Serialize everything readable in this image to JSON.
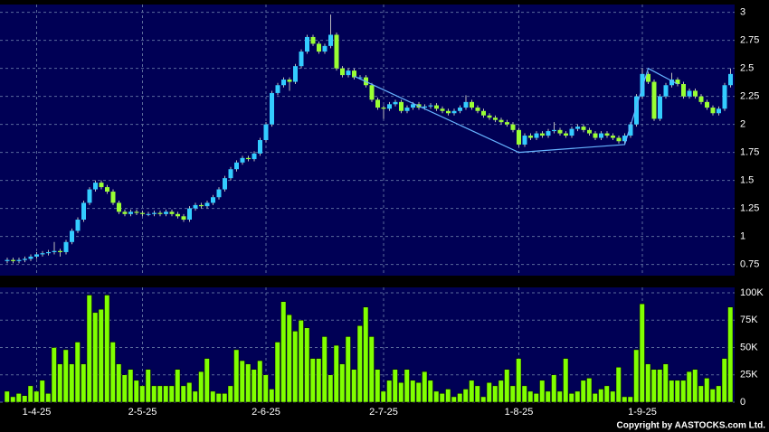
{
  "chart_data": {
    "type": "candlestick",
    "categories": [
      null,
      null,
      null,
      null,
      null,
      "1-4-25",
      null,
      null,
      null,
      null,
      null,
      null,
      null,
      null,
      null,
      null,
      null,
      null,
      null,
      null,
      null,
      null,
      null,
      "2-5-25",
      null,
      null,
      null,
      null,
      null,
      null,
      null,
      null,
      null,
      null,
      null,
      null,
      null,
      null,
      null,
      null,
      null,
      null,
      null,
      null,
      "2-6-25",
      null,
      null,
      null,
      null,
      null,
      null,
      null,
      null,
      null,
      null,
      null,
      null,
      null,
      null,
      null,
      null,
      null,
      null,
      null,
      "2-7-25",
      null,
      null,
      null,
      null,
      null,
      null,
      null,
      null,
      null,
      null,
      null,
      null,
      null,
      null,
      null,
      null,
      null,
      null,
      null,
      null,
      null,
      null,
      "1-8-25",
      null,
      null,
      null,
      null,
      null,
      null,
      null,
      null,
      null,
      null,
      null,
      null,
      null,
      null,
      null,
      null,
      null,
      null,
      null,
      null,
      "1-9-25",
      null,
      null,
      null,
      null,
      null,
      null,
      null,
      null,
      null,
      null,
      null,
      null,
      null,
      null,
      null
    ],
    "candles": [
      [
        0.78,
        0.81,
        0.76,
        0.79
      ],
      [
        0.79,
        0.81,
        0.76,
        0.78
      ],
      [
        0.78,
        0.81,
        0.76,
        0.79
      ],
      [
        0.79,
        0.82,
        0.77,
        0.8
      ],
      [
        0.8,
        0.84,
        0.78,
        0.82
      ],
      [
        0.82,
        0.86,
        0.8,
        0.84
      ],
      [
        0.84,
        0.87,
        0.82,
        0.85
      ],
      [
        0.85,
        0.88,
        0.83,
        0.86
      ],
      [
        0.86,
        0.95,
        0.84,
        0.87
      ],
      [
        0.87,
        0.89,
        0.82,
        0.86
      ],
      [
        0.86,
        0.97,
        0.84,
        0.95
      ],
      [
        0.95,
        1.07,
        0.93,
        1.05
      ],
      [
        1.05,
        1.17,
        1.03,
        1.15
      ],
      [
        1.15,
        1.32,
        1.13,
        1.3
      ],
      [
        1.3,
        1.44,
        1.28,
        1.42
      ],
      [
        1.42,
        1.5,
        1.4,
        1.48
      ],
      [
        1.48,
        1.5,
        1.42,
        1.44
      ],
      [
        1.44,
        1.46,
        1.38,
        1.4
      ],
      [
        1.4,
        1.42,
        1.28,
        1.3
      ],
      [
        1.3,
        1.32,
        1.2,
        1.22
      ],
      [
        1.22,
        1.24,
        1.18,
        1.2
      ],
      [
        1.2,
        1.24,
        1.18,
        1.22
      ],
      [
        1.22,
        1.24,
        1.19,
        1.21
      ],
      [
        1.21,
        1.23,
        1.18,
        1.2
      ],
      [
        1.2,
        1.22,
        1.18,
        1.2
      ],
      [
        1.2,
        1.23,
        1.18,
        1.21
      ],
      [
        1.21,
        1.23,
        1.18,
        1.2
      ],
      [
        1.2,
        1.24,
        1.18,
        1.22
      ],
      [
        1.22,
        1.24,
        1.18,
        1.2
      ],
      [
        1.2,
        1.22,
        1.16,
        1.18
      ],
      [
        1.18,
        1.2,
        1.13,
        1.15
      ],
      [
        1.15,
        1.27,
        1.13,
        1.25
      ],
      [
        1.25,
        1.3,
        1.23,
        1.28
      ],
      [
        1.28,
        1.3,
        1.25,
        1.27
      ],
      [
        1.27,
        1.32,
        1.25,
        1.3
      ],
      [
        1.3,
        1.37,
        1.28,
        1.35
      ],
      [
        1.35,
        1.44,
        1.33,
        1.42
      ],
      [
        1.42,
        1.54,
        1.4,
        1.52
      ],
      [
        1.52,
        1.62,
        1.5,
        1.6
      ],
      [
        1.6,
        1.68,
        1.58,
        1.66
      ],
      [
        1.66,
        1.72,
        1.64,
        1.7
      ],
      [
        1.7,
        1.72,
        1.67,
        1.69
      ],
      [
        1.69,
        1.76,
        1.67,
        1.74
      ],
      [
        1.74,
        1.88,
        1.72,
        1.86
      ],
      [
        1.86,
        2.02,
        1.84,
        2.0
      ],
      [
        2.0,
        2.3,
        1.98,
        2.28
      ],
      [
        2.28,
        2.37,
        2.26,
        2.35
      ],
      [
        2.35,
        2.42,
        2.33,
        2.4
      ],
      [
        2.4,
        2.42,
        2.3,
        2.38
      ],
      [
        2.38,
        2.54,
        2.36,
        2.52
      ],
      [
        2.52,
        2.67,
        2.5,
        2.65
      ],
      [
        2.65,
        2.8,
        2.63,
        2.78
      ],
      [
        2.78,
        2.8,
        2.7,
        2.72
      ],
      [
        2.72,
        2.74,
        2.63,
        2.65
      ],
      [
        2.65,
        2.72,
        2.63,
        2.7
      ],
      [
        2.7,
        2.98,
        2.68,
        2.8
      ],
      [
        2.8,
        2.82,
        2.48,
        2.5
      ],
      [
        2.5,
        2.52,
        2.42,
        2.44
      ],
      [
        2.44,
        2.5,
        2.42,
        2.48
      ],
      [
        2.48,
        2.5,
        2.4,
        2.42
      ],
      [
        2.42,
        2.44,
        2.4,
        2.42
      ],
      [
        2.42,
        2.44,
        2.33,
        2.35
      ],
      [
        2.35,
        2.37,
        2.2,
        2.22
      ],
      [
        2.22,
        2.24,
        2.13,
        2.15
      ],
      [
        2.15,
        2.17,
        2.05,
        2.14
      ],
      [
        2.14,
        2.2,
        2.12,
        2.18
      ],
      [
        2.18,
        2.22,
        2.16,
        2.2
      ],
      [
        2.2,
        2.22,
        2.1,
        2.12
      ],
      [
        2.12,
        2.17,
        2.1,
        2.15
      ],
      [
        2.15,
        2.2,
        2.13,
        2.18
      ],
      [
        2.18,
        2.2,
        2.13,
        2.15
      ],
      [
        2.15,
        2.18,
        2.13,
        2.16
      ],
      [
        2.16,
        2.19,
        2.14,
        2.17
      ],
      [
        2.17,
        2.19,
        2.12,
        2.14
      ],
      [
        2.14,
        2.16,
        2.1,
        2.12
      ],
      [
        2.12,
        2.14,
        2.08,
        2.1
      ],
      [
        2.1,
        2.14,
        2.08,
        2.12
      ],
      [
        2.12,
        2.17,
        2.1,
        2.15
      ],
      [
        2.15,
        2.26,
        2.13,
        2.2
      ],
      [
        2.2,
        2.22,
        2.13,
        2.15
      ],
      [
        2.15,
        2.17,
        2.1,
        2.12
      ],
      [
        2.12,
        2.14,
        2.06,
        2.08
      ],
      [
        2.08,
        2.1,
        2.04,
        2.06
      ],
      [
        2.06,
        2.08,
        2.02,
        2.04
      ],
      [
        2.04,
        2.06,
        2.0,
        2.02
      ],
      [
        2.02,
        2.04,
        1.98,
        2.0
      ],
      [
        2.0,
        2.02,
        1.93,
        1.95
      ],
      [
        1.95,
        1.97,
        1.8,
        1.82
      ],
      [
        1.82,
        1.92,
        1.8,
        1.9
      ],
      [
        1.9,
        1.92,
        1.86,
        1.88
      ],
      [
        1.88,
        1.94,
        1.86,
        1.92
      ],
      [
        1.92,
        1.94,
        1.88,
        1.9
      ],
      [
        1.9,
        1.96,
        1.88,
        1.94
      ],
      [
        1.94,
        2.02,
        1.92,
        1.95
      ],
      [
        1.95,
        1.97,
        1.9,
        1.92
      ],
      [
        1.92,
        1.94,
        1.88,
        1.9
      ],
      [
        1.9,
        1.98,
        1.88,
        1.96
      ],
      [
        1.96,
        2.0,
        1.94,
        1.98
      ],
      [
        1.98,
        2.0,
        1.93,
        1.95
      ],
      [
        1.95,
        1.97,
        1.9,
        1.92
      ],
      [
        1.92,
        1.94,
        1.86,
        1.88
      ],
      [
        1.88,
        1.94,
        1.86,
        1.92
      ],
      [
        1.92,
        1.94,
        1.88,
        1.9
      ],
      [
        1.9,
        1.92,
        1.86,
        1.88
      ],
      [
        1.88,
        1.9,
        1.83,
        1.85
      ],
      [
        1.85,
        1.92,
        1.83,
        1.9
      ],
      [
        1.9,
        2.02,
        1.88,
        2.0
      ],
      [
        2.0,
        2.27,
        1.98,
        2.25
      ],
      [
        2.25,
        2.5,
        2.23,
        2.45
      ],
      [
        2.45,
        2.47,
        2.36,
        2.38
      ],
      [
        2.38,
        2.4,
        2.03,
        2.05
      ],
      [
        2.05,
        2.27,
        2.03,
        2.25
      ],
      [
        2.25,
        2.37,
        2.23,
        2.35
      ],
      [
        2.35,
        2.46,
        2.33,
        2.4
      ],
      [
        2.4,
        2.42,
        2.34,
        2.36
      ],
      [
        2.36,
        2.38,
        2.23,
        2.25
      ],
      [
        2.25,
        2.32,
        2.23,
        2.3
      ],
      [
        2.3,
        2.32,
        2.23,
        2.25
      ],
      [
        2.25,
        2.27,
        2.18,
        2.2
      ],
      [
        2.2,
        2.22,
        2.13,
        2.15
      ],
      [
        2.15,
        2.17,
        2.08,
        2.1
      ],
      [
        2.1,
        2.16,
        2.08,
        2.14
      ],
      [
        2.14,
        2.37,
        2.12,
        2.35
      ],
      [
        2.35,
        2.5,
        2.33,
        2.45
      ]
    ],
    "volume": [
      10000,
      5000,
      8000,
      6000,
      15000,
      10000,
      20000,
      8000,
      50000,
      35000,
      48000,
      35000,
      55000,
      35000,
      98000,
      82000,
      85000,
      98000,
      55000,
      35000,
      25000,
      30000,
      20000,
      15000,
      30000,
      15000,
      15000,
      15000,
      15000,
      30000,
      15000,
      18000,
      10000,
      28000,
      40000,
      10000,
      8000,
      8000,
      15000,
      48000,
      38000,
      35000,
      30000,
      38000,
      25000,
      12000,
      55000,
      92000,
      80000,
      65000,
      75000,
      68000,
      40000,
      40000,
      60000,
      25000,
      52000,
      35000,
      60000,
      30000,
      70000,
      87000,
      60000,
      30000,
      10000,
      20000,
      30000,
      18000,
      30000,
      20000,
      18000,
      28000,
      20000,
      10000,
      8000,
      12000,
      5000,
      8000,
      12000,
      20000,
      15000,
      5000,
      18000,
      15000,
      20000,
      30000,
      15000,
      40000,
      15000,
      10000,
      8000,
      20000,
      10000,
      25000,
      10000,
      40000,
      8000,
      10000,
      20000,
      22000,
      8000,
      12000,
      15000,
      10000,
      32000,
      5000,
      5000,
      48000,
      90000,
      35000,
      30000,
      30000,
      35000,
      20000,
      20000,
      20000,
      28000,
      30000,
      15000,
      22000,
      12000,
      15000,
      40000,
      87000
    ],
    "up_color": "#33ccff",
    "down_color": "#99ff33",
    "volume_color": "#80ff00",
    "trendline_color": "#66b3ff",
    "trendline": [
      [
        59,
        2.43
      ],
      [
        87,
        1.75
      ],
      [
        105,
        1.82
      ],
      [
        109,
        2.5
      ],
      [
        114,
        2.36
      ]
    ],
    "ylim": [
      0.65,
      3.07
    ],
    "yticks": [
      0.75,
      1,
      1.25,
      1.5,
      1.75,
      2,
      2.25,
      2.5,
      2.75,
      3
    ],
    "volume_ylim": [
      0,
      105000
    ],
    "volume_yticks": [
      0,
      {
        "value": 25000,
        "label": "25K"
      },
      {
        "value": 50000,
        "label": "50K"
      },
      {
        "value": 75000,
        "label": "75K"
      },
      {
        "value": 100000,
        "label": "100K"
      }
    ],
    "grid": true,
    "copyright": "Copyright by AASTOCKS.com Ltd."
  }
}
